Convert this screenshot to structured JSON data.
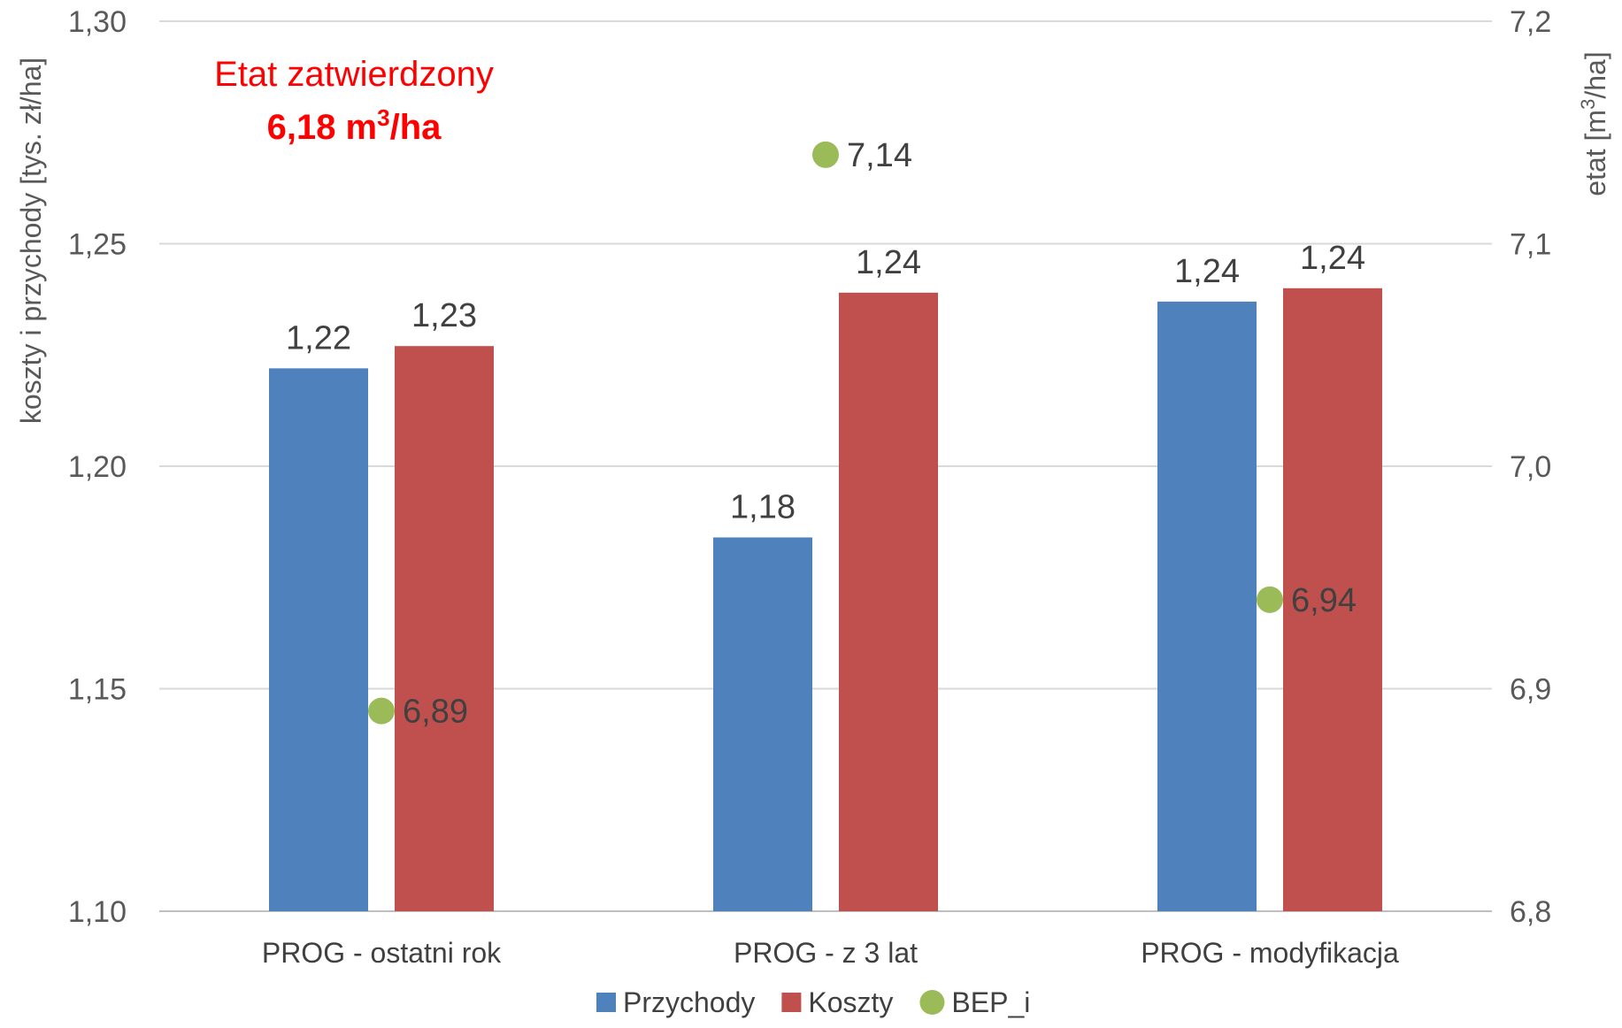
{
  "chart_data": {
    "type": "bar",
    "categories": [
      "PROG - ostatni rok",
      "PROG - z 3 lat",
      "PROG - modyfikacja"
    ],
    "series": [
      {
        "name": "Przychody",
        "type": "bar",
        "axis": "left",
        "color": "#4f81bd",
        "values": [
          1.222,
          1.184,
          1.237
        ],
        "labels": [
          "1,22",
          "1,18",
          "1,24"
        ]
      },
      {
        "name": "Koszty",
        "type": "bar",
        "axis": "left",
        "color": "#c0504d",
        "values": [
          1.227,
          1.239,
          1.24
        ],
        "labels": [
          "1,23",
          "1,24",
          "1,24"
        ]
      },
      {
        "name": "BEP_i",
        "type": "scatter",
        "axis": "right",
        "color": "#9bbb59",
        "values": [
          6.89,
          7.14,
          6.94
        ],
        "labels": [
          "6,89",
          "7,14",
          "6,94"
        ]
      }
    ],
    "ylabel": "koszty i przychody [tys. zł/ha]",
    "ylabel_right_main": "etat [m",
    "ylabel_right_sup": "3",
    "ylabel_right_tail": "/ha]",
    "ylim": [
      1.1,
      1.3
    ],
    "ylim_right": [
      6.8,
      7.2
    ],
    "yticks": [
      "1,10",
      "1,15",
      "1,20",
      "1,25",
      "1,30"
    ],
    "yticks_right": [
      "6,8",
      "6,9",
      "7,0",
      "7,1",
      "7,2"
    ],
    "grid": true,
    "legend_position": "bottom",
    "annotation": {
      "line1": "Etat zatwierdzony",
      "line2_main": "6,18 m",
      "line2_sup": "3",
      "line2_tail": "/ha"
    }
  }
}
